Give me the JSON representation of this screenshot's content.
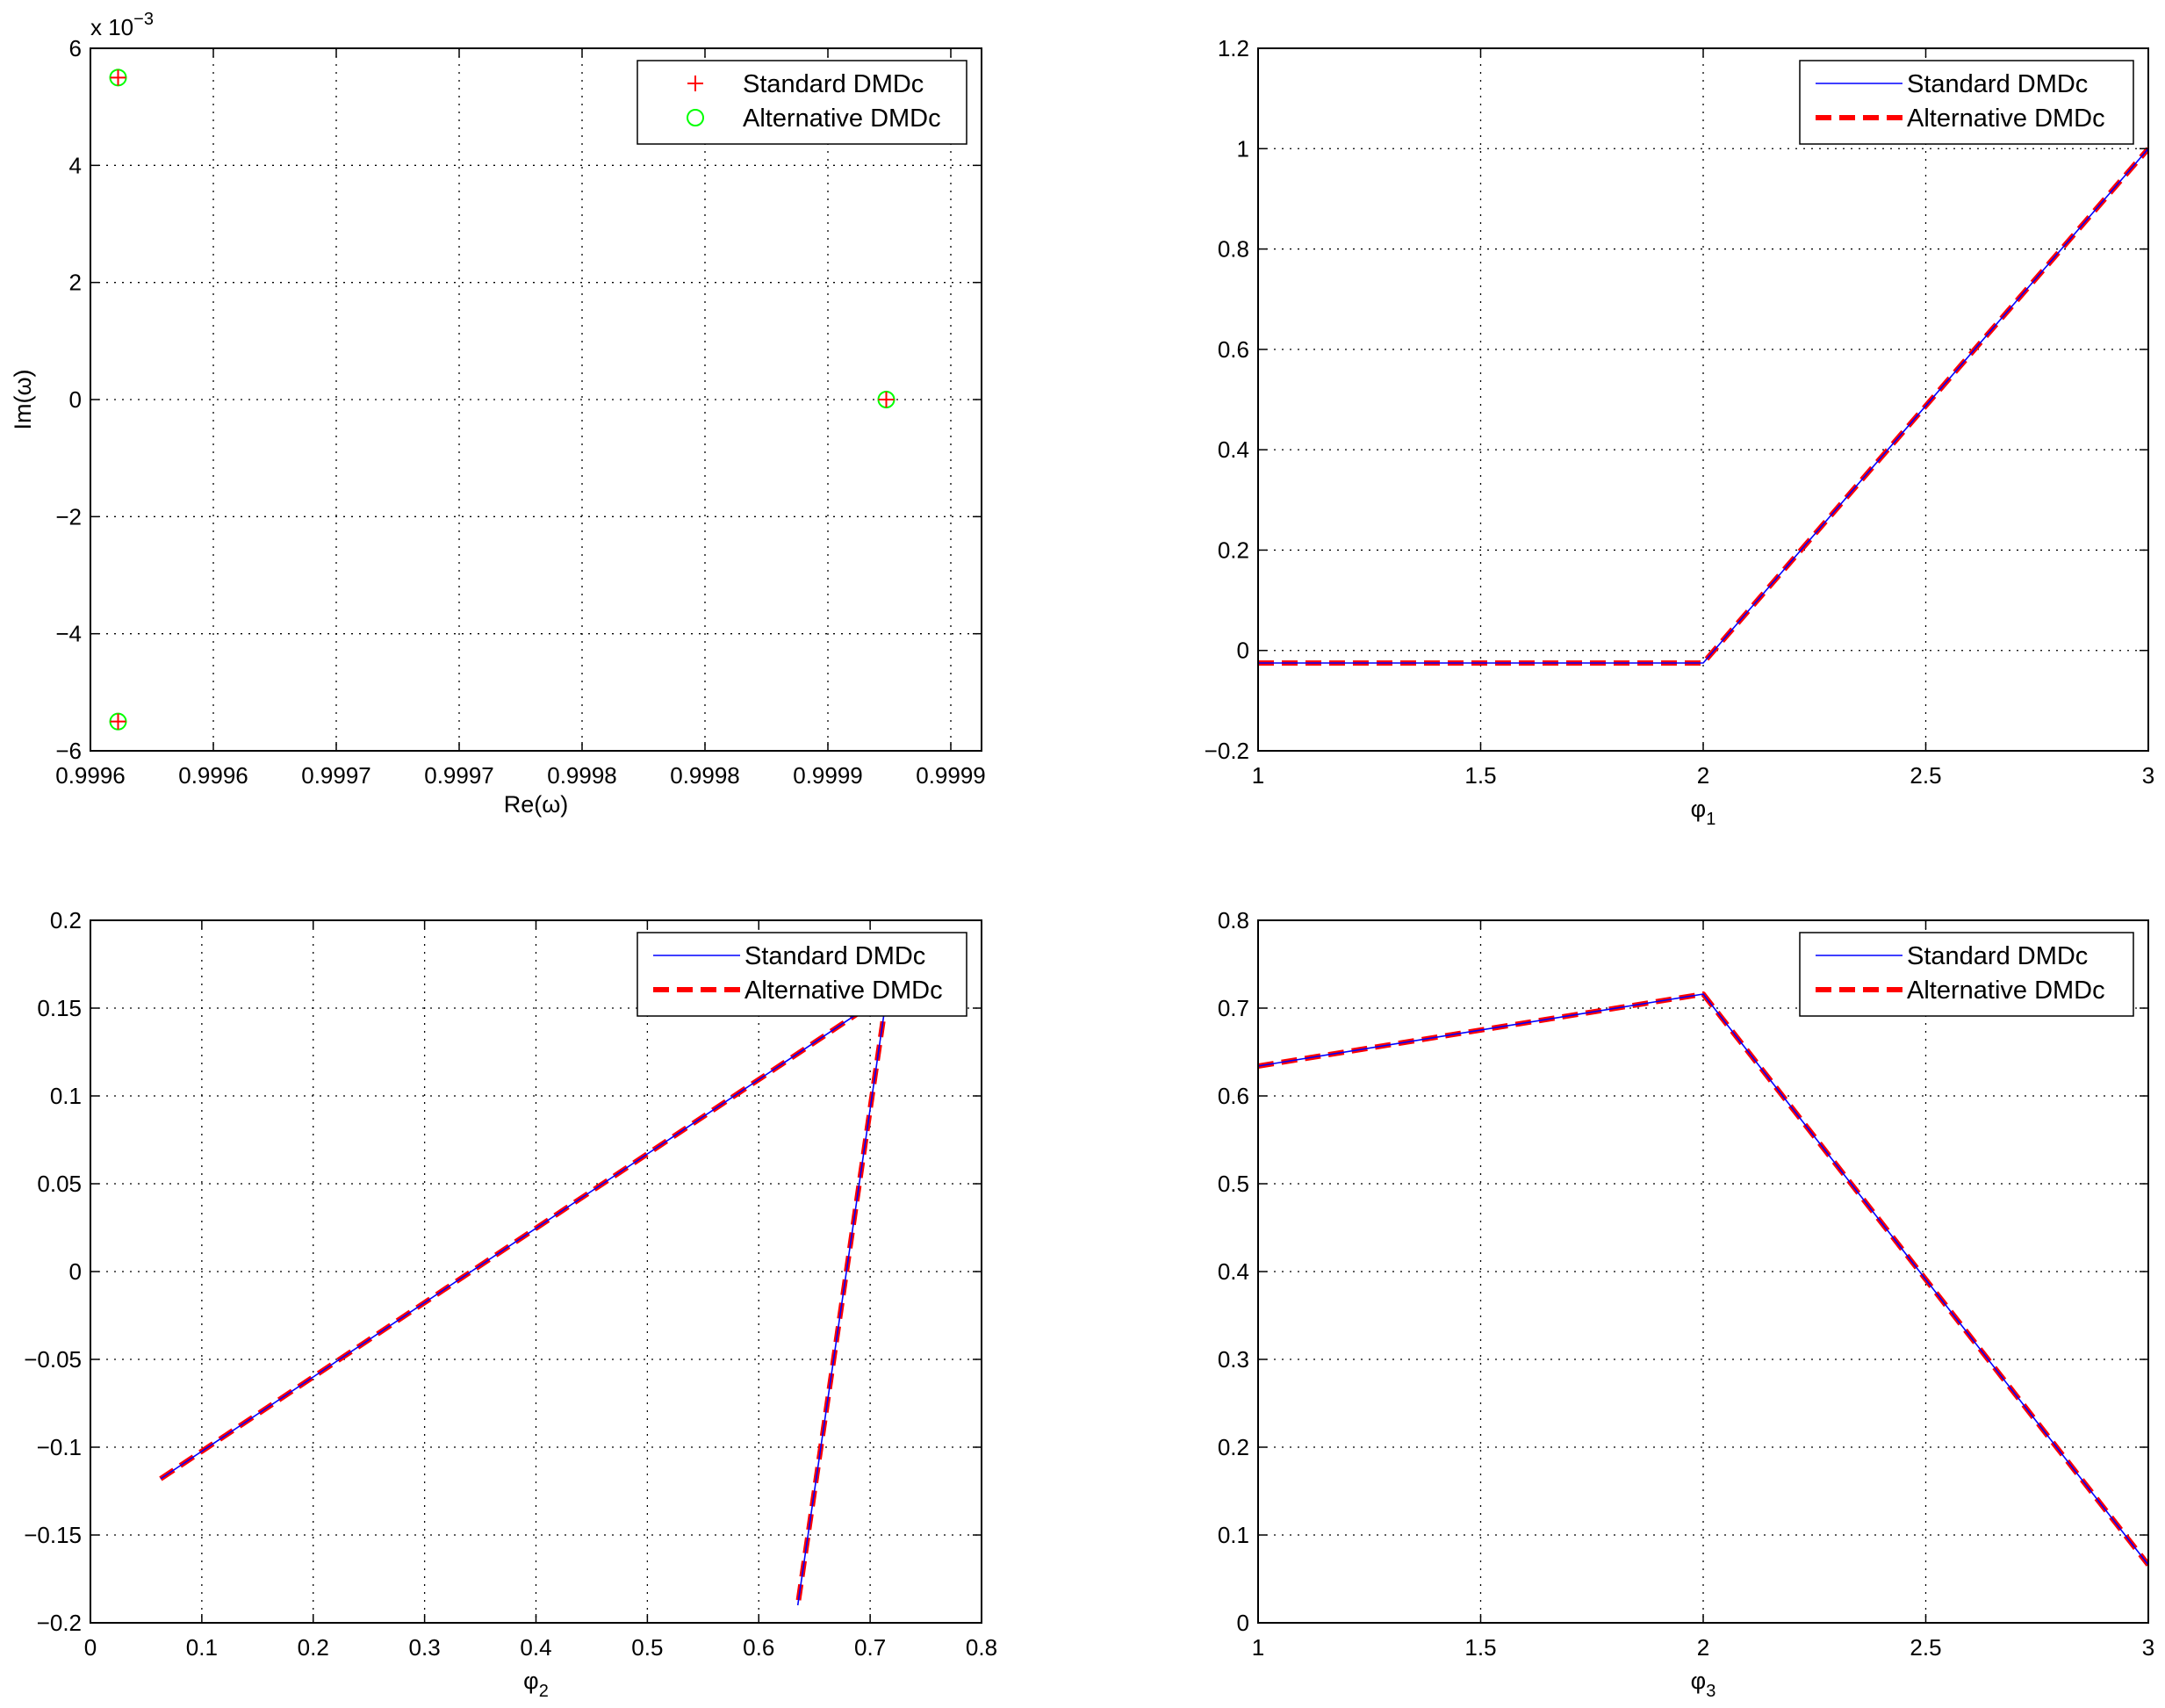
{
  "colors": {
    "standard_line": "#0000ff",
    "alternative_line": "#ff0000",
    "standard_marker": "#ff0000",
    "alternative_marker": "#00ff00",
    "grid": "#000000"
  },
  "chart_data": [
    {
      "type": "scatter",
      "xlabel": "Re(ω)",
      "ylabel": "Im(ω)",
      "exponent_label": {
        "base": "x 10",
        "power": "−3"
      },
      "xlim": [
        0.99962,
        0.99991
      ],
      "ylim": [
        -6,
        6
      ],
      "x_ticks": [
        0.99962,
        0.99966,
        0.9997,
        0.99974,
        0.99978,
        0.99982,
        0.99986,
        0.9999
      ],
      "x_tick_labels": [
        "0.9996",
        "0.9996",
        "0.9997",
        "0.9997",
        "0.9998",
        "0.9998",
        "0.9999",
        "0.9999"
      ],
      "y_ticks": [
        -6,
        -4,
        -2,
        0,
        2,
        4,
        6
      ],
      "y_tick_labels": [
        "−6",
        "−4",
        "−2",
        "0",
        "2",
        "4",
        "6"
      ],
      "grid": true,
      "legend_position": "top-right",
      "series": [
        {
          "name": "Standard DMDc",
          "marker": "plus",
          "x": [
            0.999629,
            0.999629,
            0.999879
          ],
          "y": [
            5.5,
            -5.5,
            0
          ]
        },
        {
          "name": "Alternative DMDc",
          "marker": "circle",
          "x": [
            0.999629,
            0.999629,
            0.999879
          ],
          "y": [
            5.5,
            -5.5,
            0
          ]
        }
      ]
    },
    {
      "type": "line",
      "xlabel": "φ",
      "xlabel_sub": "1",
      "ylabel": "",
      "xlim": [
        1,
        3
      ],
      "ylim": [
        -0.2,
        1.2
      ],
      "x_ticks": [
        1,
        1.5,
        2,
        2.5,
        3
      ],
      "x_tick_labels": [
        "1",
        "1.5",
        "2",
        "2.5",
        "3"
      ],
      "y_ticks": [
        -0.2,
        0,
        0.2,
        0.4,
        0.6,
        0.8,
        1,
        1.2
      ],
      "y_tick_labels": [
        "−0.2",
        "0",
        "0.2",
        "0.4",
        "0.6",
        "0.8",
        "1",
        "1.2"
      ],
      "grid": true,
      "legend_position": "top-right",
      "series": [
        {
          "name": "Standard DMDc",
          "style": "solid",
          "x": [
            1,
            2,
            3
          ],
          "y": [
            -0.025,
            -0.025,
            1.0
          ]
        },
        {
          "name": "Alternative DMDc",
          "style": "dashed",
          "x": [
            1,
            2,
            3
          ],
          "y": [
            -0.025,
            -0.025,
            1.0
          ]
        }
      ]
    },
    {
      "type": "line",
      "xlabel": "φ",
      "xlabel_sub": "2",
      "ylabel": "",
      "xlim": [
        0,
        0.8
      ],
      "ylim": [
        -0.2,
        0.2
      ],
      "x_ticks": [
        0,
        0.1,
        0.2,
        0.3,
        0.4,
        0.5,
        0.6,
        0.7,
        0.8
      ],
      "x_tick_labels": [
        "0",
        "0.1",
        "0.2",
        "0.3",
        "0.4",
        "0.5",
        "0.6",
        "0.7",
        "0.8"
      ],
      "y_ticks": [
        -0.2,
        -0.15,
        -0.1,
        -0.05,
        0,
        0.05,
        0.1,
        0.15,
        0.2
      ],
      "y_tick_labels": [
        "−0.2",
        "−0.15",
        "−0.1",
        "−0.05",
        "0",
        "0.05",
        "0.1",
        "0.15",
        "0.2"
      ],
      "grid": true,
      "legend_position": "top-right",
      "series": [
        {
          "name": "Standard DMDc",
          "style": "solid",
          "x": [
            0.063,
            0.715,
            0.635
          ],
          "y": [
            -0.118,
            0.158,
            -0.19
          ]
        },
        {
          "name": "Alternative DMDc",
          "style": "dashed",
          "x": [
            0.063,
            0.715,
            0.635
          ],
          "y": [
            -0.118,
            0.158,
            -0.19
          ]
        }
      ]
    },
    {
      "type": "line",
      "xlabel": "φ",
      "xlabel_sub": "3",
      "ylabel": "",
      "xlim": [
        1,
        3
      ],
      "ylim": [
        0,
        0.8
      ],
      "x_ticks": [
        1,
        1.5,
        2,
        2.5,
        3
      ],
      "x_tick_labels": [
        "1",
        "1.5",
        "2",
        "2.5",
        "3"
      ],
      "y_ticks": [
        0,
        0.1,
        0.2,
        0.3,
        0.4,
        0.5,
        0.6,
        0.7,
        0.8
      ],
      "y_tick_labels": [
        "0",
        "0.1",
        "0.2",
        "0.3",
        "0.4",
        "0.5",
        "0.6",
        "0.7",
        "0.8"
      ],
      "grid": true,
      "legend_position": "top-right",
      "series": [
        {
          "name": "Standard DMDc",
          "style": "solid",
          "x": [
            1,
            2,
            3
          ],
          "y": [
            0.634,
            0.716,
            0.066
          ]
        },
        {
          "name": "Alternative DMDc",
          "style": "dashed",
          "x": [
            1,
            2,
            3
          ],
          "y": [
            0.634,
            0.716,
            0.066
          ]
        }
      ]
    }
  ]
}
